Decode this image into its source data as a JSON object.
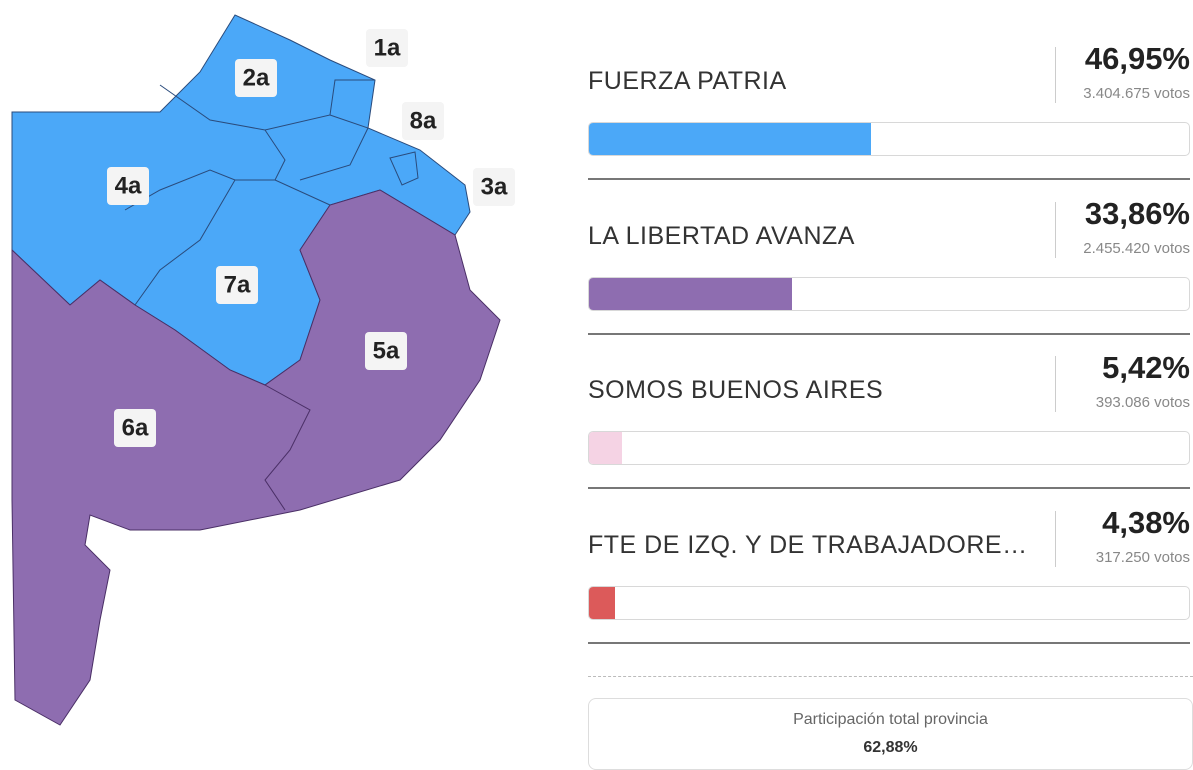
{
  "map": {
    "sections": [
      "1a",
      "2a",
      "8a",
      "3a",
      "4a",
      "7a",
      "5a",
      "6a"
    ]
  },
  "results": {
    "xlim": [
      0,
      100
    ],
    "parties": [
      {
        "name": "FUERZA PATRIA",
        "percent": {
          "value": 46.95,
          "label": "46,95%"
        },
        "votes": "3.404.675 votos",
        "color": "#4ba8f8"
      },
      {
        "name": "LA LIBERTAD AVANZA",
        "percent": {
          "value": 33.86,
          "label": "33,86%"
        },
        "votes": "2.455.420 votos",
        "color": "#8e6db0"
      },
      {
        "name": "SOMOS BUENOS AIRES",
        "percent": {
          "value": 5.42,
          "label": "5,42%"
        },
        "votes": "393.086 votos",
        "color": "#f5d3e4"
      },
      {
        "name": "FTE DE IZQ. Y DE TRABAJADORE…",
        "percent": {
          "value": 4.38,
          "label": "4,38%"
        },
        "votes": "317.250 votos",
        "color": "#dc5a5a"
      }
    ]
  },
  "participation": {
    "title": "Participación total provincia",
    "value": {
      "value": 62.88,
      "label": "62,88%"
    }
  }
}
